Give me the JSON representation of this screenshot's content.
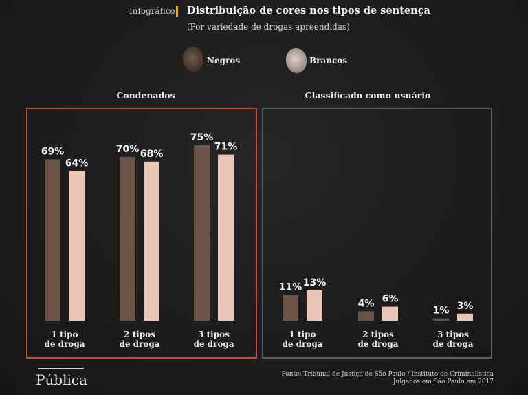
{
  "header": {
    "kicker": "Infográfico",
    "title": "Distribuição de cores nos tipos de sentença",
    "subtitle": "(Por variedade de drogas apreendidas)"
  },
  "legend": {
    "negros": "Negros",
    "brancos": "Brancos"
  },
  "colors": {
    "negros": "#6b5348",
    "brancos": "#ebc6b8",
    "accent_frame": "#d9471f",
    "neutral_frame": "#5e5e5e",
    "kicker_bar": "#e0b43a"
  },
  "chart_data": [
    {
      "type": "bar",
      "title": "Condenados",
      "categories": [
        "1 tipo de droga",
        "2 tipos de droga",
        "3 tipos de droga"
      ],
      "category_lines": [
        [
          "1 tipo",
          "de droga"
        ],
        [
          "2 tipos",
          "de droga"
        ],
        [
          "3 tipos",
          "de droga"
        ]
      ],
      "series": [
        {
          "name": "Negros",
          "values": [
            69,
            70,
            75
          ]
        },
        {
          "name": "Brancos",
          "values": [
            64,
            68,
            71
          ]
        }
      ],
      "value_suffix": "%",
      "ylim": [
        0,
        100
      ]
    },
    {
      "type": "bar",
      "title": "Classificado como usuário",
      "categories": [
        "1 tipo de droga",
        "2 tipos de droga",
        "3 tipos de droga"
      ],
      "category_lines": [
        [
          "1 tipo",
          "de droga"
        ],
        [
          "2 tipos",
          "de droga"
        ],
        [
          "3 tipos",
          "de droga"
        ]
      ],
      "series": [
        {
          "name": "Negros",
          "values": [
            11,
            4,
            1
          ]
        },
        {
          "name": "Brancos",
          "values": [
            13,
            6,
            3
          ]
        }
      ],
      "value_suffix": "%",
      "ylim": [
        0,
        100
      ]
    }
  ],
  "footer": {
    "source_line1": "Fonte: Tribunal de Justiça de São Paulo / Instituto de Criminalística",
    "source_line2": "Julgados em São Paulo em 2017",
    "logo": "Pública"
  }
}
